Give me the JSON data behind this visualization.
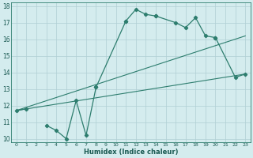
{
  "xlabel": "Humidex (Indice chaleur)",
  "bg_color": "#d4ecee",
  "line_color": "#2d7d6e",
  "grid_color": "#b0cfd4",
  "xlim": [
    -0.5,
    23.5
  ],
  "ylim": [
    9.8,
    18.2
  ],
  "xticks": [
    0,
    1,
    2,
    3,
    4,
    5,
    6,
    7,
    8,
    9,
    10,
    11,
    12,
    13,
    14,
    15,
    16,
    17,
    18,
    19,
    20,
    21,
    22,
    23
  ],
  "yticks": [
    10,
    11,
    12,
    13,
    14,
    15,
    16,
    17,
    18
  ],
  "curve_segments": [
    {
      "x": [
        0,
        1
      ],
      "y": [
        11.7,
        11.8
      ]
    },
    {
      "x": [
        3,
        4,
        5,
        6,
        7,
        8
      ],
      "y": [
        10.8,
        10.5,
        10.0,
        12.3,
        10.2,
        13.1
      ]
    },
    {
      "x": [
        8,
        11
      ],
      "y": [
        13.1,
        17.1
      ]
    },
    {
      "x": [
        11,
        12,
        13,
        14
      ],
      "y": [
        17.1,
        17.8,
        17.5,
        17.4
      ]
    },
    {
      "x": [
        14,
        16,
        17,
        18,
        19,
        20
      ],
      "y": [
        17.4,
        17.0,
        16.7,
        17.3,
        16.2,
        16.1
      ]
    },
    {
      "x": [
        20,
        22,
        23
      ],
      "y": [
        16.1,
        13.7,
        13.9
      ]
    }
  ],
  "line1_x": [
    0,
    23
  ],
  "line1_y": [
    11.7,
    13.9
  ],
  "line2_x": [
    0,
    23
  ],
  "line2_y": [
    11.7,
    16.2
  ]
}
